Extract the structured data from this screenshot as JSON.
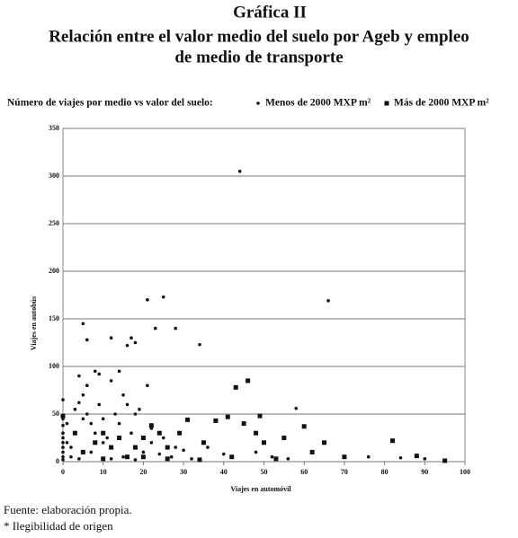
{
  "chart_data": {
    "type": "scatter",
    "title": "Gráfica II",
    "subtitle": [
      "Relación entre el valor medio del suelo por Ageb y empleo",
      "de medio de transporte"
    ],
    "legend_title": "Número de viajes por medio vs valor del suelo:",
    "x_label": "Viajes en automóvil",
    "y_label": "Viajes en autobús",
    "source": "Fuente: elaboración propia.",
    "note": "* Ilegibilidad de origen",
    "xlim": [
      0,
      100
    ],
    "xticks": [
      0,
      10,
      20,
      30,
      40,
      50,
      60,
      70,
      80,
      90,
      100
    ],
    "ylim": [
      0,
      350
    ],
    "yticks": [
      0,
      50,
      100,
      150,
      200,
      250,
      300,
      350
    ],
    "grid": true,
    "series": [
      {
        "name": "Menos de 2000 MXP m²",
        "color": "#111111",
        "marker": "dot",
        "x": [
          0,
          0,
          0,
          0,
          0,
          0,
          0,
          0,
          0,
          0,
          1,
          1,
          2,
          3,
          4,
          4,
          5,
          5,
          5,
          6,
          6,
          6,
          7,
          8,
          8,
          9,
          9,
          10,
          10,
          11,
          12,
          12,
          13,
          14,
          14,
          15,
          16,
          16,
          17,
          17,
          18,
          18,
          19,
          21,
          21,
          22,
          23,
          25,
          28,
          34,
          44,
          58,
          66,
          20,
          24,
          27,
          30,
          32,
          36,
          40,
          48,
          52,
          56,
          76,
          84,
          90,
          95,
          2,
          4,
          7,
          12,
          15,
          18,
          22,
          25,
          28
        ],
        "values": [
          65,
          45,
          38,
          30,
          25,
          20,
          15,
          10,
          5,
          2,
          40,
          20,
          15,
          55,
          62,
          90,
          145,
          70,
          45,
          128,
          80,
          50,
          40,
          95,
          30,
          92,
          60,
          45,
          20,
          25,
          130,
          85,
          50,
          95,
          40,
          70,
          122,
          60,
          130,
          30,
          125,
          50,
          55,
          170,
          80,
          20,
          140,
          173,
          140,
          123,
          305,
          56,
          169,
          10,
          8,
          5,
          12,
          3,
          15,
          8,
          10,
          5,
          3,
          5,
          4,
          3,
          1,
          5,
          3,
          10,
          3,
          5,
          2,
          35,
          25,
          15
        ]
      },
      {
        "name": "Más de 2000 MXP m²",
        "color": "#111111",
        "marker": "square",
        "x": [
          0,
          3,
          5,
          8,
          10,
          12,
          14,
          16,
          18,
          20,
          22,
          24,
          26,
          29,
          31,
          35,
          38,
          41,
          43,
          45,
          46,
          48,
          49,
          50,
          55,
          60,
          62,
          65,
          70,
          82,
          88,
          95,
          34,
          42,
          53,
          26,
          20,
          10
        ],
        "values": [
          48,
          30,
          10,
          20,
          30,
          15,
          25,
          5,
          15,
          25,
          38,
          30,
          15,
          30,
          44,
          20,
          43,
          47,
          78,
          40,
          85,
          30,
          48,
          20,
          25,
          37,
          10,
          20,
          5,
          22,
          6,
          1,
          2,
          5,
          3,
          3,
          5,
          3
        ]
      }
    ]
  }
}
